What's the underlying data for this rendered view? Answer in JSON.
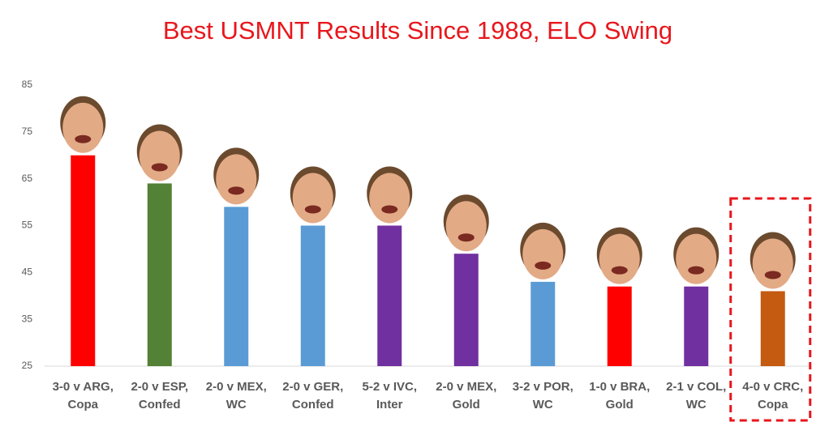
{
  "chart_data": {
    "type": "bar",
    "title": "Best USMNT Results Since 1988, ELO Swing",
    "categories": [
      [
        "3-0 v ARG,",
        "Copa"
      ],
      [
        "2-0 v ESP,",
        "Confed"
      ],
      [
        "2-0 v MEX,",
        "WC"
      ],
      [
        "2-0 v GER,",
        "Confed"
      ],
      [
        "5-2 v IVC,",
        "Inter"
      ],
      [
        "2-0 v MEX,",
        "Gold"
      ],
      [
        "3-2 v POR,",
        "WC"
      ],
      [
        "1-0 v BRA,",
        "Gold"
      ],
      [
        "2-1 v COL,",
        "WC"
      ],
      [
        "4-0 v CRC,",
        "Copa"
      ]
    ],
    "values": [
      70,
      64,
      59,
      55,
      55,
      49,
      43,
      42,
      42,
      41
    ],
    "colors": [
      "#ff0000",
      "#538135",
      "#5b9bd5",
      "#5b9bd5",
      "#7030a0",
      "#7030a0",
      "#5b9bd5",
      "#ff0000",
      "#7030a0",
      "#c55a11"
    ],
    "ylim": [
      25,
      85
    ],
    "yticks": [
      25,
      35,
      45,
      55,
      65,
      75,
      85
    ],
    "grid": false
  }
}
